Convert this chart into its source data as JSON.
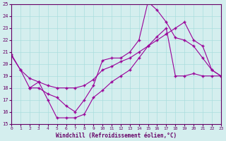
{
  "xlabel": "Windchill (Refroidissement éolien,°C)",
  "bg_color": "#d4eeee",
  "grid_color": "#aadddd",
  "line_color": "#990099",
  "xlim": [
    0,
    23
  ],
  "ylim": [
    15,
    25
  ],
  "xticks": [
    0,
    1,
    2,
    3,
    4,
    5,
    6,
    7,
    8,
    9,
    10,
    11,
    12,
    13,
    14,
    15,
    16,
    17,
    18,
    19,
    20,
    21,
    22,
    23
  ],
  "yticks": [
    15,
    16,
    17,
    18,
    19,
    20,
    21,
    22,
    23,
    24,
    25
  ],
  "line1_x": [
    0,
    1,
    2,
    3,
    4,
    5,
    6,
    7,
    8,
    9,
    10,
    11,
    12,
    13,
    14,
    15,
    16,
    17,
    18,
    19,
    20,
    21,
    22,
    23
  ],
  "line1_y": [
    20.7,
    19.5,
    18.8,
    18.5,
    18.2,
    18.0,
    18.0,
    18.0,
    18.2,
    18.7,
    19.5,
    19.8,
    20.2,
    20.5,
    21.0,
    21.5,
    22.0,
    22.5,
    23.0,
    23.5,
    22.0,
    21.5,
    19.5,
    19.0
  ],
  "line2_x": [
    0,
    1,
    2,
    3,
    4,
    5,
    6,
    7,
    8,
    9,
    10,
    11,
    12,
    13,
    14,
    15,
    16,
    17,
    18,
    19,
    20,
    21,
    22,
    23
  ],
  "line2_y": [
    20.8,
    19.5,
    18.0,
    18.0,
    17.5,
    17.2,
    16.5,
    16.0,
    17.0,
    18.2,
    20.3,
    20.5,
    20.5,
    21.0,
    22.0,
    25.2,
    24.5,
    23.5,
    22.2,
    22.0,
    21.5,
    20.5,
    19.5,
    19.0
  ],
  "line3_x": [
    2,
    3,
    4,
    5,
    6,
    7,
    8,
    9,
    10,
    11,
    12,
    13,
    14,
    15,
    16,
    17,
    18,
    19,
    20,
    21,
    22,
    23
  ],
  "line3_y": [
    18.0,
    18.5,
    17.0,
    15.5,
    15.5,
    15.5,
    15.8,
    17.2,
    17.8,
    18.5,
    19.0,
    19.5,
    20.5,
    21.5,
    22.3,
    23.0,
    19.0,
    19.0,
    19.2,
    19.0,
    19.0,
    19.0
  ]
}
